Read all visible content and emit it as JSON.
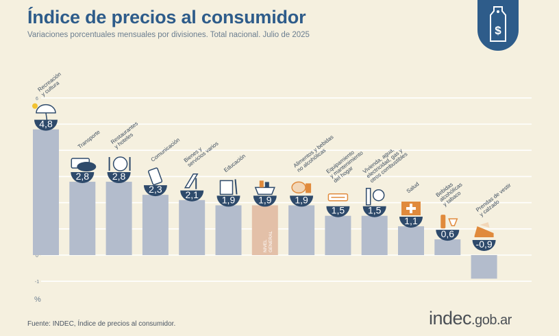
{
  "header": {
    "title": "Índice de precios al consumidor",
    "subtitle": "Variaciones porcentuales mensuales por divisiones. Total nacional. Julio de 2025"
  },
  "footer": {
    "source": "Fuente: INDEC, Índice de precios al consumidor.",
    "brand_main": "indec",
    "brand_domain": ".gob.ar"
  },
  "badge": {
    "icon": "price-tag-dollar-icon",
    "symbol": "$"
  },
  "colors": {
    "bar": "#b3bccc",
    "bar_general": "#e3c0a8",
    "value_bubble": "#2e4a6b",
    "title": "#2e5c8a",
    "background": "#f5f0df"
  },
  "chart_data": {
    "type": "bar",
    "ylabel": "%",
    "ylim": [
      -1,
      6
    ],
    "yticks": [
      -1,
      0,
      1,
      2,
      3,
      4,
      5,
      6
    ],
    "grid": true,
    "categories": [
      "Recreación y cultura",
      "Transporte",
      "Restaurantes y hoteles",
      "Comunicación",
      "Bienes y servicios varios",
      "Educación",
      "Nivel general",
      "Alimentos y bebidas no alcohólicas",
      "Equipamiento y mantenimiento del hogar",
      "Vivienda, agua, electricidad, gas y otros combustibles",
      "Salud",
      "Bebidas alcohólicas y tabaco",
      "Prendas de vestir y calzado"
    ],
    "category_labels": [
      [
        "Recreación",
        "y cultura"
      ],
      [
        "Transporte"
      ],
      [
        "Restaurantes",
        "y hoteles"
      ],
      [
        "Comunicación"
      ],
      [
        "Bienes y",
        "servicios varios"
      ],
      [
        "Educación"
      ],
      [],
      [
        "Alimentos y bebidas",
        "no alcohólicas"
      ],
      [
        "Equipamiento",
        "y mantenimiento",
        "del hogar"
      ],
      [
        "Vivienda, agua,",
        "electricidad, gas y",
        "otros combustibles"
      ],
      [
        "Salud"
      ],
      [
        "Bebidas",
        "alcohólicas",
        "y tabaco"
      ],
      [
        "Prendas de vestir",
        "y calzado"
      ]
    ],
    "general_label": [
      "NIVEL",
      "GENERAL"
    ],
    "values": [
      4.8,
      2.8,
      2.8,
      2.3,
      2.1,
      1.9,
      1.9,
      1.9,
      1.5,
      1.5,
      1.1,
      0.6,
      -0.9
    ],
    "value_labels": [
      "4,8",
      "2,8",
      "2,8",
      "2,3",
      "2,1",
      "1,9",
      "1,9",
      "1,9",
      "1,5",
      "1,5",
      "1,1",
      "0,6",
      "-0,9"
    ],
    "highlight_index": 6,
    "icons": [
      "beach-umbrella-icon",
      "bus-icon",
      "cutlery-icon",
      "phone-icon",
      "comb-icon",
      "notebook-icon",
      "shopping-basket-icon",
      "food-icon",
      "iron-icon",
      "lightbulb-icon",
      "medical-cross-icon",
      "bottle-icon",
      "shoe-icon"
    ]
  }
}
